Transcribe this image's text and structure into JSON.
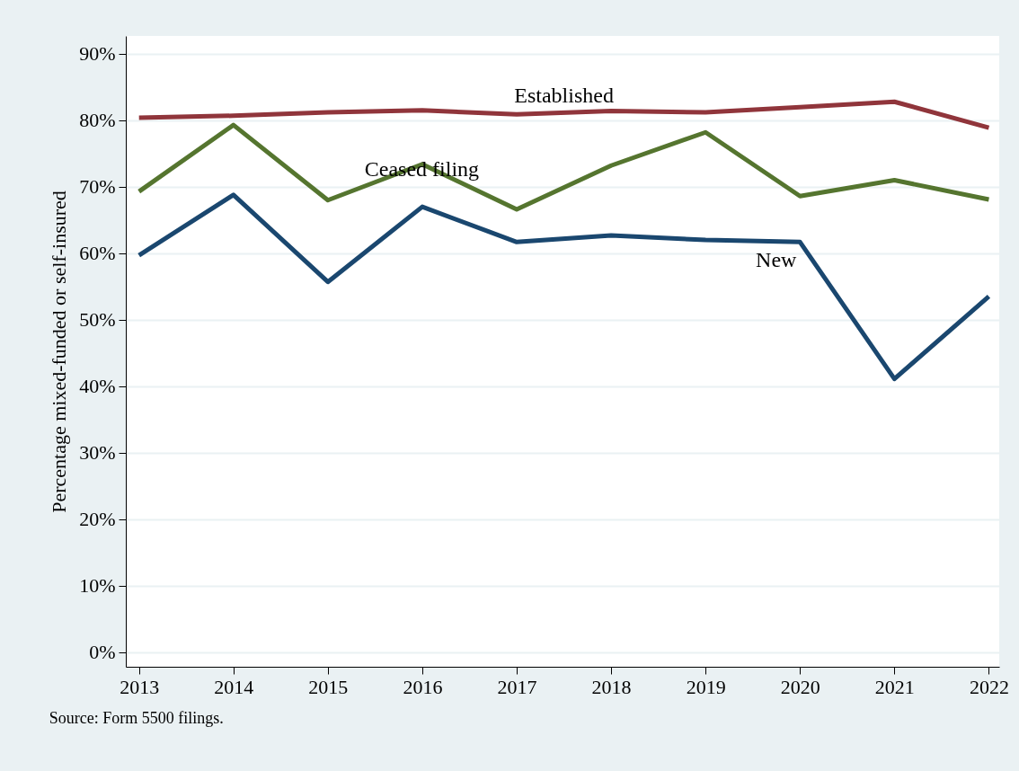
{
  "chart_data": {
    "type": "line",
    "ylabel": "Percentage mixed-funded or self-insured",
    "x": [
      2013,
      2014,
      2015,
      2016,
      2017,
      2018,
      2019,
      2020,
      2021,
      2022
    ],
    "series": [
      {
        "name": "Established",
        "color": "#90353b",
        "values": [
          80.4,
          80.7,
          81.2,
          81.5,
          80.9,
          81.4,
          81.2,
          82.0,
          82.8,
          78.9
        ]
      },
      {
        "name": "Ceased filing",
        "color": "#55752f",
        "values": [
          69.3,
          79.3,
          68.0,
          73.4,
          66.6,
          73.2,
          78.2,
          68.6,
          71.0,
          68.1
        ]
      },
      {
        "name": "New",
        "color": "#1a476f",
        "values": [
          59.7,
          68.8,
          55.7,
          67.0,
          61.7,
          62.7,
          62.0,
          61.7,
          41.1,
          53.5
        ]
      }
    ],
    "xlim": [
      2012.86,
      2022.11
    ],
    "ylim": [
      -2.2,
      92.7
    ],
    "xticks": [
      2013,
      2014,
      2015,
      2016,
      2017,
      2018,
      2019,
      2020,
      2021,
      2022
    ],
    "yticks": [
      {
        "value": 0,
        "label": "0%"
      },
      {
        "value": 10,
        "label": "10%"
      },
      {
        "value": 20,
        "label": "20%"
      },
      {
        "value": 30,
        "label": "30%"
      },
      {
        "value": 40,
        "label": "40%"
      },
      {
        "value": 50,
        "label": "50%"
      },
      {
        "value": 60,
        "label": "60%"
      },
      {
        "value": 70,
        "label": "70%"
      },
      {
        "value": 80,
        "label": "80%"
      },
      {
        "value": 90,
        "label": "90%"
      }
    ],
    "grid": "y",
    "annotations": [
      "Source: Form 5500 filings."
    ]
  }
}
